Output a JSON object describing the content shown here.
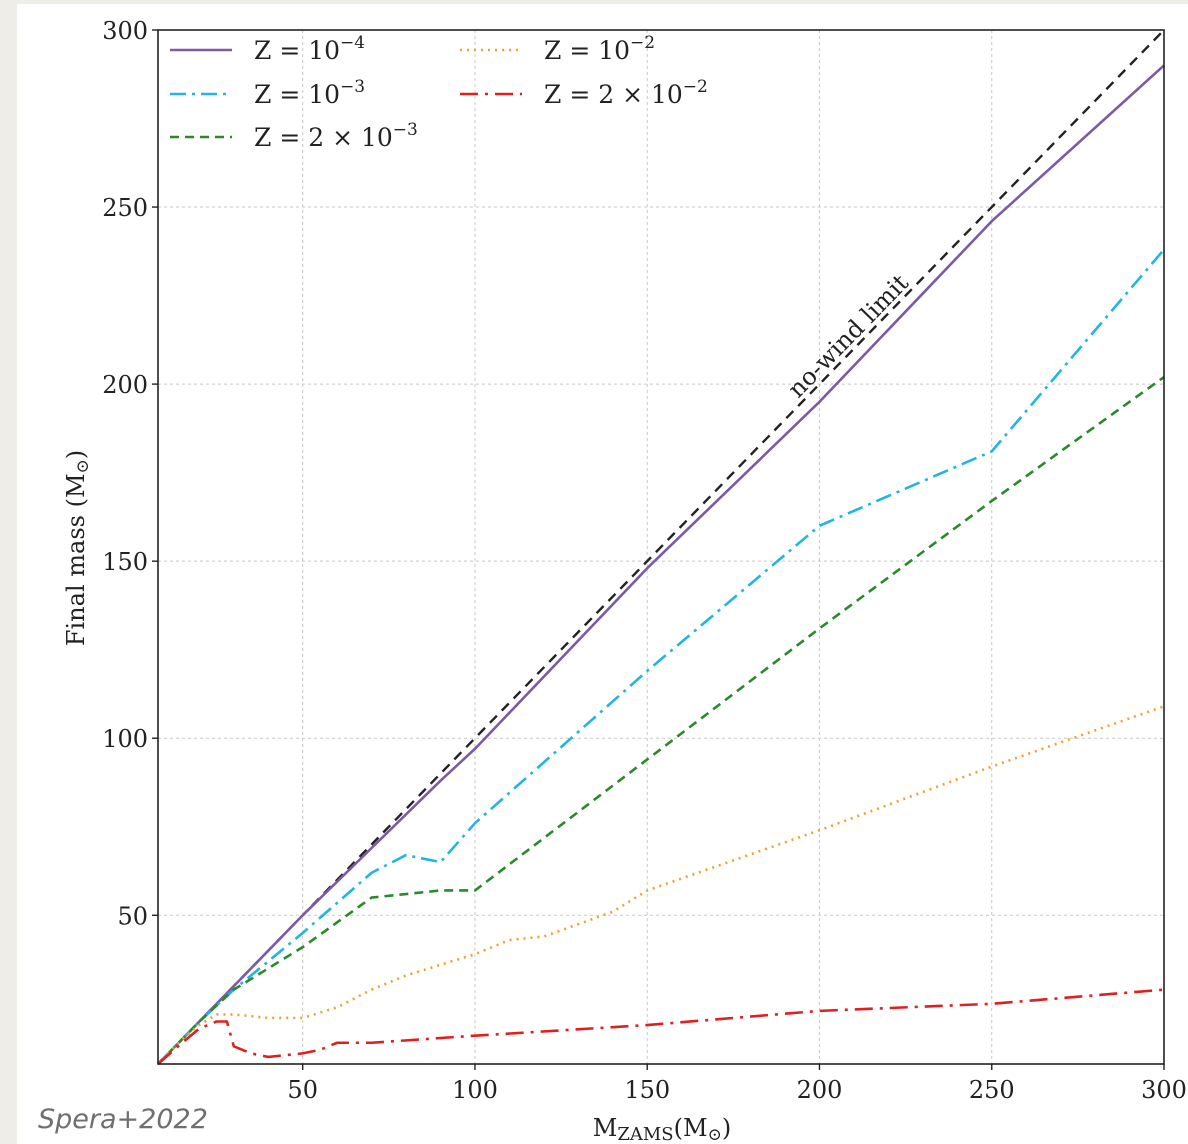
{
  "credit": "Spera+2022",
  "chart_data": {
    "type": "line",
    "title": "",
    "xlabel_main": "M",
    "xlabel_sub": "ZAMS",
    "xlabel_unit": "(M",
    "xlabel_sun": "⊙",
    "xlabel_close": ")",
    "ylabel_main": "Final mass (M",
    "ylabel_sun": "⊙",
    "ylabel_close": ")",
    "xlim": [
      8,
      300
    ],
    "ylim": [
      8,
      300
    ],
    "xticks": [
      50,
      100,
      150,
      200,
      250,
      300
    ],
    "yticks": [
      50,
      100,
      150,
      200,
      250,
      300
    ],
    "grid": true,
    "legend_position": "top-left",
    "annotation": {
      "text": "no-wind limit",
      "at": [
        210,
        212
      ]
    },
    "reference_line": {
      "color": "#222222",
      "dash": "10,7",
      "x": [
        8,
        300
      ],
      "y": [
        8,
        300
      ]
    },
    "series": [
      {
        "legend_base": "Z = 10",
        "legend_sup": "−4",
        "color": "#7b5aa6",
        "dash": "",
        "x": [
          8,
          20,
          30,
          50,
          70,
          90,
          100,
          150,
          200,
          250,
          300
        ],
        "y": [
          8,
          20,
          30,
          50,
          69,
          88,
          97,
          148,
          195,
          246,
          290
        ]
      },
      {
        "legend_base": "Z = 10",
        "legend_sup": "−3",
        "color": "#22b5e0",
        "dash": "16,6,3,6",
        "x": [
          8,
          20,
          30,
          50,
          70,
          80,
          90,
          100,
          150,
          200,
          250,
          300
        ],
        "y": [
          8,
          20,
          29,
          45,
          62,
          67,
          65,
          76,
          119,
          160,
          181,
          238
        ]
      },
      {
        "legend_base": "Z = 2 × 10",
        "legend_sup": "−3",
        "color": "#2a8a2a",
        "dash": "9,6",
        "x": [
          8,
          20,
          30,
          50,
          60,
          70,
          80,
          90,
          100,
          150,
          200,
          250,
          300
        ],
        "y": [
          8,
          20,
          29,
          41,
          48,
          55,
          56,
          57,
          57,
          94,
          131,
          167,
          202
        ]
      },
      {
        "legend_base": "Z = 10",
        "legend_sup": "−2",
        "color": "#f0a030",
        "dash": "2,5",
        "x": [
          8,
          15,
          20,
          25,
          30,
          40,
          50,
          60,
          70,
          80,
          90,
          100,
          110,
          120,
          140,
          150,
          200,
          250,
          300
        ],
        "y": [
          8,
          15,
          19,
          22,
          22,
          21,
          21,
          24,
          29,
          33,
          36,
          39,
          43,
          44,
          51,
          57,
          74,
          92,
          109
        ]
      },
      {
        "legend_base": "Z = 2 × 10",
        "legend_sup": "−2",
        "color": "#e02020",
        "dash": "18,7,3,7",
        "x": [
          8,
          15,
          20,
          25,
          28,
          30,
          35,
          40,
          50,
          55,
          60,
          70,
          100,
          150,
          200,
          250,
          300
        ],
        "y": [
          8,
          14,
          18,
          20,
          20,
          13,
          11,
          10,
          11,
          12,
          14,
          14,
          16,
          19,
          23,
          25,
          29
        ]
      }
    ]
  }
}
